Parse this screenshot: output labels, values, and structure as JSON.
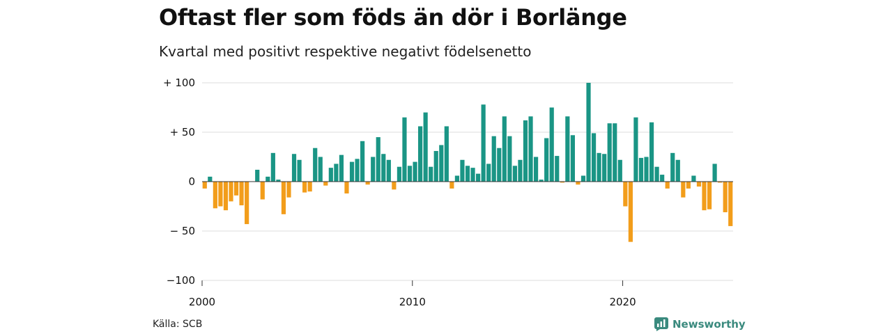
{
  "title": "Oftast fler som föds än dör i Borlänge",
  "subtitle": "Kvartal med positivt respektive negativt födelsenetto",
  "source": "Källa: SCB",
  "brand": "Newsworthy",
  "colors": {
    "positive": "#1a9585",
    "negative": "#f29d1b",
    "grid": "#dcdcdc",
    "brand": "#3a8a7e"
  },
  "chart_data": {
    "type": "bar",
    "title": "Oftast fler som föds än dör i Borlänge",
    "subtitle": "Kvartal med positivt respektive negativt födelsenetto",
    "xlabel": "",
    "ylabel": "",
    "ylim": [
      -100,
      100
    ],
    "yticks": [
      {
        "value": 100,
        "label": "+ 100"
      },
      {
        "value": 50,
        "label": "+  50"
      },
      {
        "value": 0,
        "label": "0"
      },
      {
        "value": -50,
        "label": "− 50"
      },
      {
        "value": -100,
        "label": "−100"
      }
    ],
    "xticks": [
      {
        "value": 2000,
        "label": "2000"
      },
      {
        "value": 2010,
        "label": "2010"
      },
      {
        "value": 2020,
        "label": "2020"
      }
    ],
    "x_start": "2000 Q1",
    "frequency": "quarterly",
    "grid": true,
    "values": [
      -7,
      5,
      -27,
      -25,
      -29,
      -20,
      -14,
      -24,
      -43,
      0,
      12,
      -18,
      5,
      29,
      2,
      -33,
      -16,
      28,
      22,
      -11,
      -10,
      34,
      25,
      -4,
      14,
      18,
      27,
      -12,
      20,
      23,
      41,
      -3,
      25,
      45,
      28,
      22,
      -8,
      15,
      65,
      16,
      20,
      56,
      70,
      15,
      31,
      37,
      56,
      -7,
      6,
      22,
      16,
      14,
      8,
      78,
      18,
      46,
      34,
      66,
      46,
      16,
      22,
      62,
      66,
      25,
      2,
      44,
      75,
      26,
      -1,
      66,
      47,
      -3,
      6,
      100,
      49,
      29,
      28,
      59,
      59,
      22,
      -25,
      -61,
      65,
      24,
      25,
      60,
      15,
      7,
      -7,
      29,
      22,
      -16,
      -7,
      6,
      -5,
      -29,
      -28,
      18,
      -1,
      -31,
      -45
    ]
  }
}
